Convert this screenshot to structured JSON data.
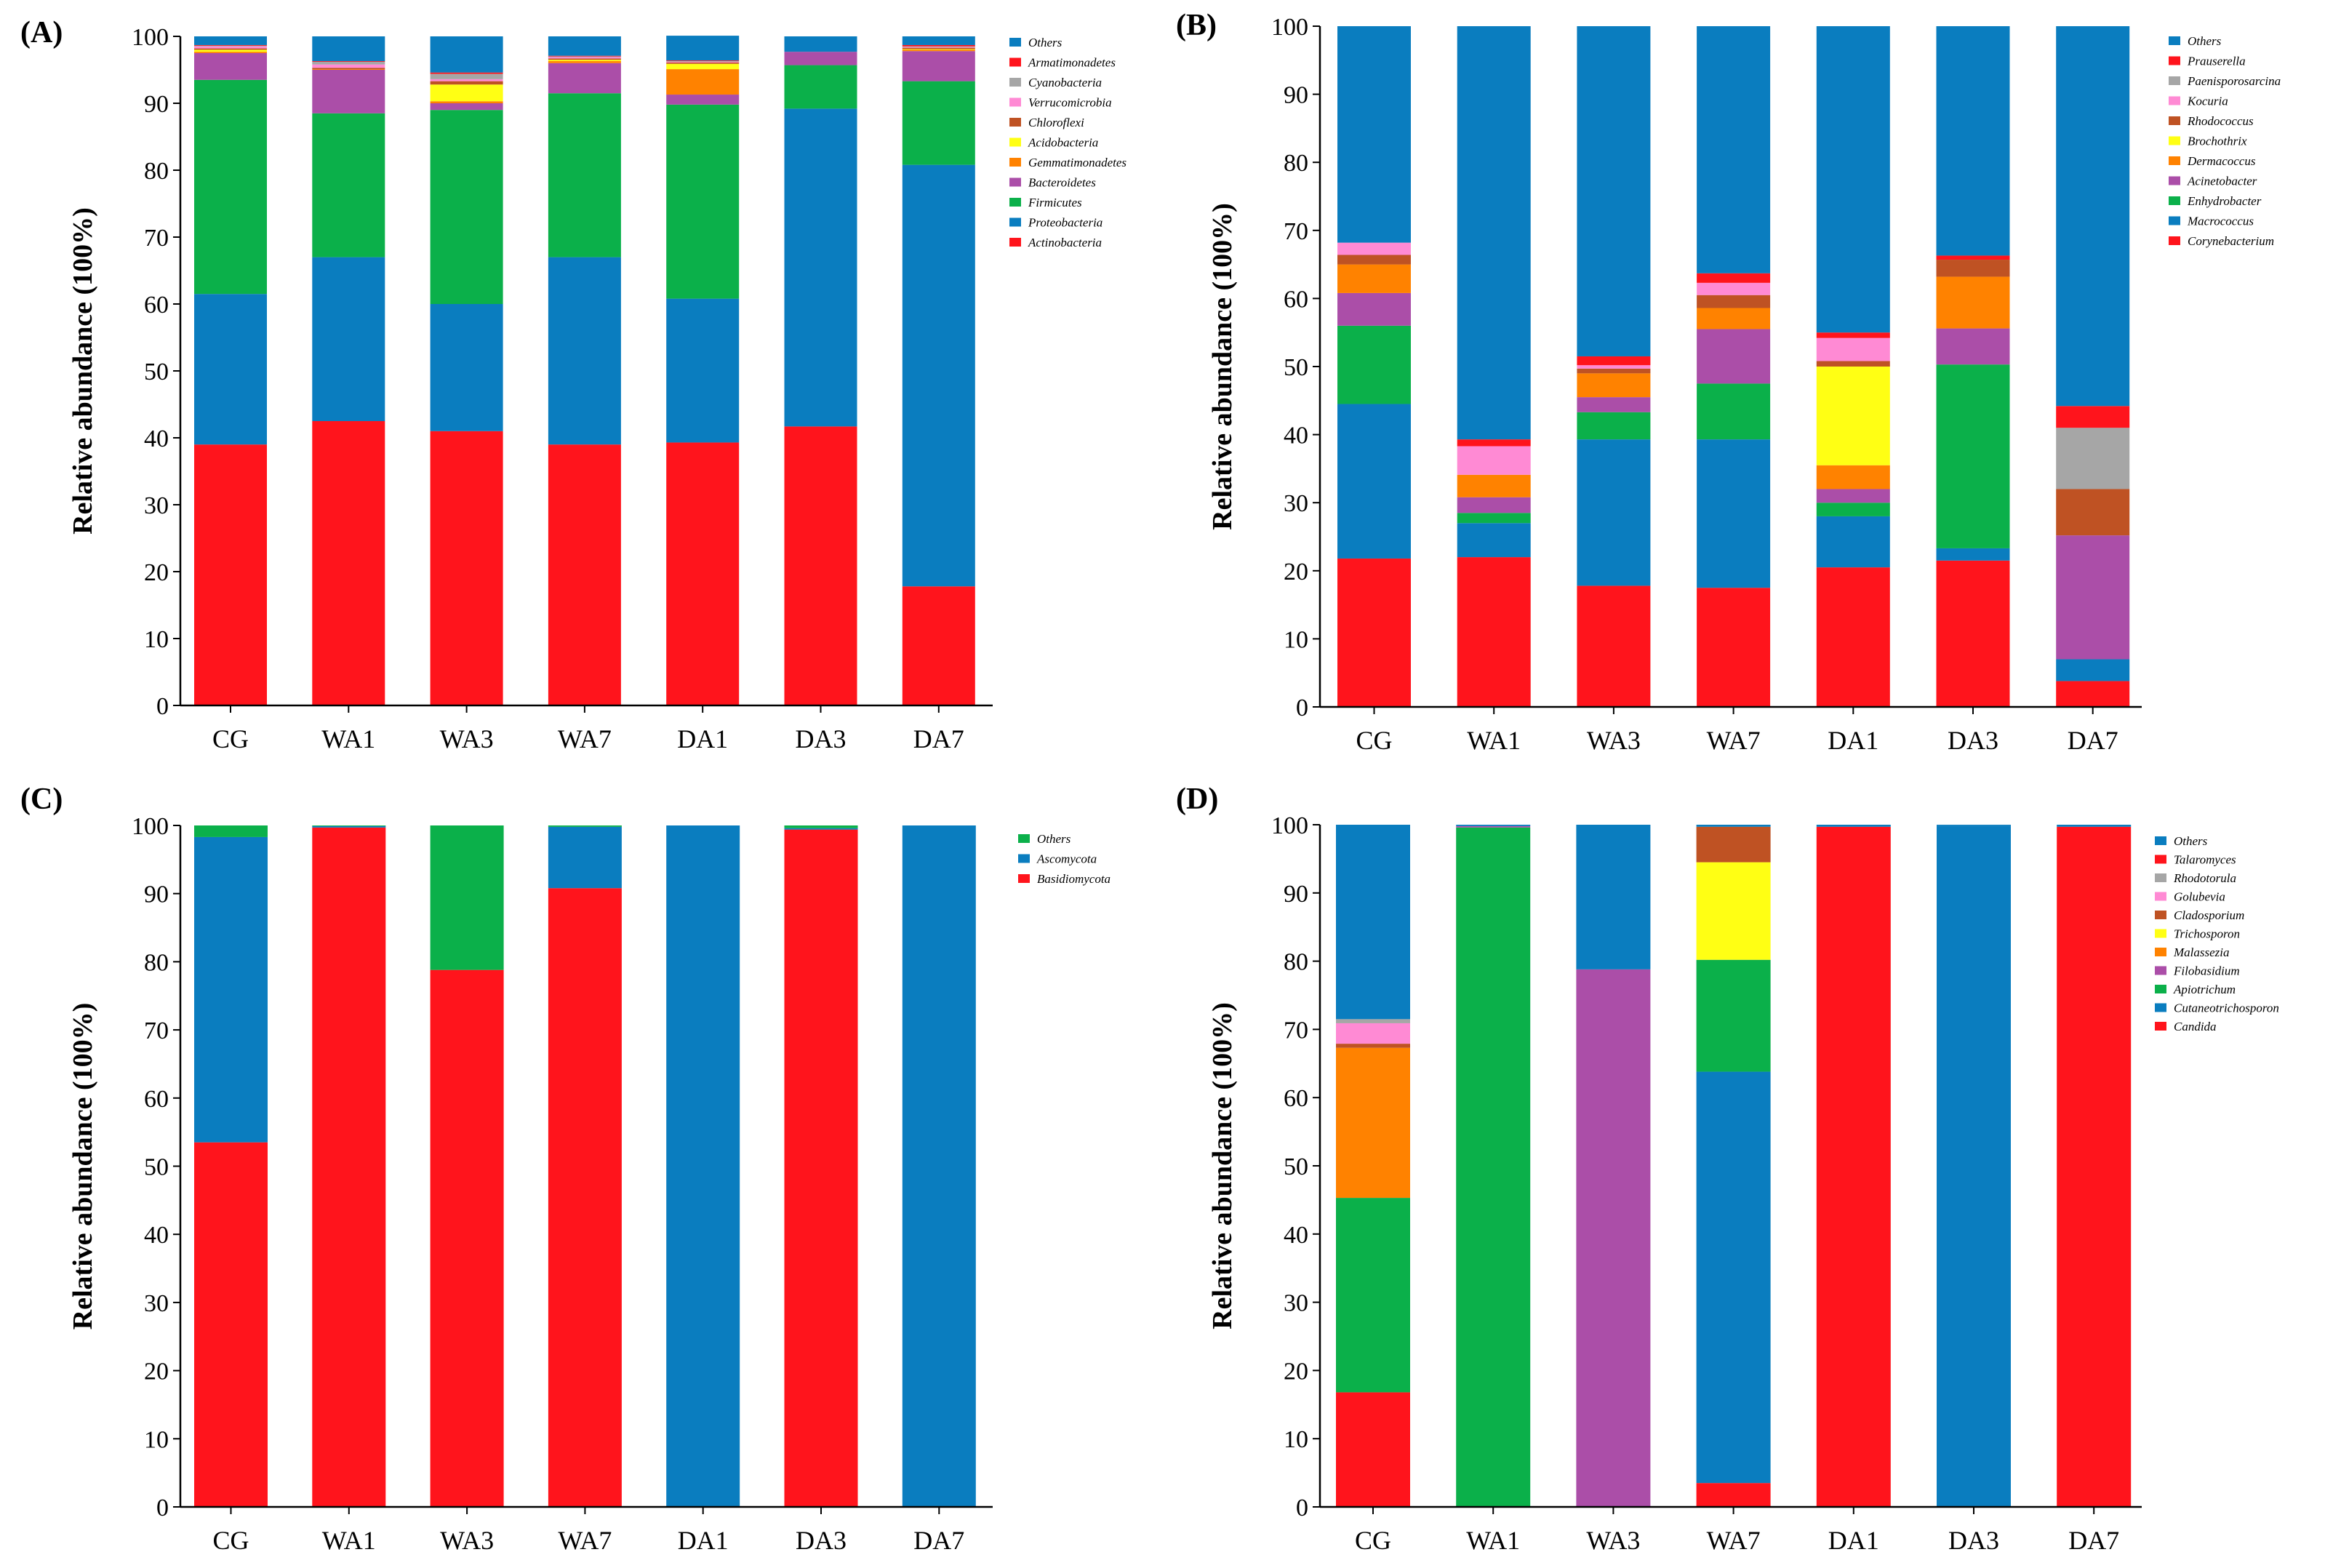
{
  "colors": {
    "red": "#ff141c",
    "blue": "#0a7dbf",
    "green": "#0bb04a",
    "purple": "#ab4ea8",
    "orange": "#ff8200",
    "yellow": "#ffff14",
    "brown": "#bf5223",
    "pink": "#ff8ad4",
    "gray": "#a6a6a6",
    "otherblue": "#0a7dbf"
  },
  "chart_data": [
    {
      "panel": "(A)",
      "type": "bar",
      "stacked": true,
      "ylabel": "Relative abundance (100%)",
      "ylim": [
        0,
        100
      ],
      "yticks": [
        0,
        10,
        20,
        30,
        40,
        50,
        60,
        70,
        80,
        90,
        100
      ],
      "categories": [
        "CG",
        "WA1",
        "WA3",
        "WA7",
        "DA1",
        "DA3",
        "DA7"
      ],
      "legend_position": "top-right",
      "series": [
        {
          "name": "Actinobacteria",
          "color": "red",
          "values": [
            39.0,
            42.5,
            41.0,
            39.0,
            39.3,
            41.7,
            17.8
          ]
        },
        {
          "name": "Proteobacteria",
          "color": "blue",
          "values": [
            22.5,
            24.5,
            19.0,
            28.0,
            21.5,
            47.5,
            63.0
          ]
        },
        {
          "name": "Firmicutes",
          "color": "green",
          "values": [
            32.0,
            21.5,
            29.0,
            24.5,
            29.0,
            6.5,
            12.5
          ]
        },
        {
          "name": "Bacteroidetes",
          "color": "purple",
          "values": [
            4.0,
            6.5,
            1.0,
            4.5,
            1.5,
            2.0,
            4.5
          ]
        },
        {
          "name": "Gemmatimonadetes",
          "color": "orange",
          "values": [
            0.2,
            0.1,
            0.3,
            0.3,
            3.8,
            0.0,
            0.2
          ]
        },
        {
          "name": "Acidobacteria",
          "color": "yellow",
          "values": [
            0.3,
            0.0,
            2.5,
            0.2,
            0.8,
            0.0,
            0.1
          ]
        },
        {
          "name": "Chloroflexi",
          "color": "brown",
          "values": [
            0.2,
            0.2,
            0.5,
            0.2,
            0.2,
            0.0,
            0.2
          ]
        },
        {
          "name": "Verrucomicrobia",
          "color": "pink",
          "values": [
            0.3,
            0.5,
            0.3,
            0.2,
            0.1,
            0.0,
            0.1
          ]
        },
        {
          "name": "Cyanobacteria",
          "color": "gray",
          "values": [
            0.1,
            0.4,
            0.8,
            0.1,
            0.1,
            0.0,
            0.1
          ]
        },
        {
          "name": "Armatimonadetes",
          "color": "red",
          "values": [
            0.1,
            0.1,
            0.2,
            0.1,
            0.1,
            0.0,
            0.2
          ]
        },
        {
          "name": "Others",
          "color": "otherblue",
          "values": [
            1.3,
            3.7,
            5.4,
            2.9,
            3.7,
            2.3,
            1.3
          ]
        }
      ]
    },
    {
      "panel": "(B)",
      "type": "bar",
      "stacked": true,
      "ylabel": "Relative abundance (100%)",
      "ylim": [
        0,
        100
      ],
      "yticks": [
        0,
        10,
        20,
        30,
        40,
        50,
        60,
        70,
        80,
        90,
        100
      ],
      "categories": [
        "CG",
        "WA1",
        "WA3",
        "WA7",
        "DA1",
        "DA3",
        "DA7"
      ],
      "legend_position": "top-right",
      "series": [
        {
          "name": "Corynebacterium",
          "color": "red",
          "values": [
            21.8,
            22.0,
            17.8,
            17.5,
            20.5,
            21.5,
            3.8
          ]
        },
        {
          "name": "Macrococcus",
          "color": "blue",
          "values": [
            22.7,
            5.0,
            21.5,
            21.8,
            7.5,
            1.8,
            3.2
          ]
        },
        {
          "name": "Enhydrobacter",
          "color": "green",
          "values": [
            11.5,
            1.5,
            4.0,
            8.2,
            2.0,
            27.0,
            0.0
          ]
        },
        {
          "name": "Acinetobacter",
          "color": "purple",
          "values": [
            4.8,
            2.3,
            2.2,
            8.0,
            2.0,
            5.3,
            18.2
          ]
        },
        {
          "name": "Dermacoccus",
          "color": "orange",
          "values": [
            4.2,
            3.3,
            3.5,
            3.1,
            3.5,
            7.6,
            0.0
          ]
        },
        {
          "name": "Brochothrix",
          "color": "yellow",
          "values": [
            0.0,
            0.0,
            0.0,
            0.0,
            14.5,
            0.0,
            0.0
          ]
        },
        {
          "name": "Rhodococcus",
          "color": "brown",
          "values": [
            1.4,
            0.0,
            0.7,
            1.9,
            0.8,
            2.5,
            6.8
          ]
        },
        {
          "name": "Kocuria",
          "color": "pink",
          "values": [
            1.8,
            4.2,
            0.5,
            1.8,
            3.4,
            0.0,
            0.0
          ]
        },
        {
          "name": "Paenisporosarcina",
          "color": "gray",
          "values": [
            0.0,
            0.0,
            0.0,
            0.0,
            0.0,
            0.0,
            9.0
          ]
        },
        {
          "name": "Prauserella",
          "color": "red",
          "values": [
            0.0,
            1.0,
            1.3,
            1.4,
            0.8,
            0.6,
            3.2
          ]
        },
        {
          "name": "Others",
          "color": "otherblue",
          "values": [
            31.8,
            60.7,
            48.5,
            36.3,
            45.0,
            33.7,
            55.8
          ]
        }
      ]
    },
    {
      "panel": "(C)",
      "type": "bar",
      "stacked": true,
      "ylabel": "Relative abundance (100%)",
      "ylim": [
        0,
        100
      ],
      "yticks": [
        0,
        10,
        20,
        30,
        40,
        50,
        60,
        70,
        80,
        90,
        100
      ],
      "categories": [
        "CG",
        "WA1",
        "WA3",
        "WA7",
        "DA1",
        "DA3",
        "DA7"
      ],
      "legend_position": "top-right",
      "series": [
        {
          "name": "Basidiomycota",
          "color": "red",
          "values": [
            53.5,
            99.7,
            78.8,
            90.8,
            0.0,
            99.4,
            0.0
          ]
        },
        {
          "name": "Ascomycota",
          "color": "blue",
          "values": [
            44.8,
            0.2,
            0.0,
            9.0,
            100.0,
            0.2,
            100.0
          ]
        },
        {
          "name": "Others",
          "color": "green",
          "values": [
            1.7,
            0.1,
            21.2,
            0.2,
            0.0,
            0.4,
            0.0
          ]
        }
      ]
    },
    {
      "panel": "(D)",
      "type": "bar",
      "stacked": true,
      "ylabel": "Relative abundance (100%)",
      "ylim": [
        0,
        100
      ],
      "yticks": [
        0,
        10,
        20,
        30,
        40,
        50,
        60,
        70,
        80,
        90,
        100
      ],
      "categories": [
        "CG",
        "WA1",
        "WA3",
        "WA7",
        "DA1",
        "DA3",
        "DA7"
      ],
      "legend_position": "top-right",
      "series": [
        {
          "name": "Candida",
          "color": "red",
          "values": [
            16.8,
            0.0,
            0.0,
            3.5,
            99.7,
            0.0,
            99.7
          ]
        },
        {
          "name": "Cutaneotrichosporon",
          "color": "blue",
          "values": [
            0.0,
            0.0,
            0.0,
            60.3,
            0.0,
            99.8,
            0.0
          ]
        },
        {
          "name": "Apiotrichum",
          "color": "green",
          "values": [
            28.5,
            99.6,
            0.0,
            16.4,
            0.0,
            0.0,
            0.0
          ]
        },
        {
          "name": "Filobasidium",
          "color": "purple",
          "values": [
            0.0,
            0.2,
            78.8,
            0.0,
            0.0,
            0.0,
            0.0
          ]
        },
        {
          "name": "Malassezia",
          "color": "orange",
          "values": [
            22.0,
            0.0,
            0.0,
            0.0,
            0.0,
            0.0,
            0.0
          ]
        },
        {
          "name": "Trichosporon",
          "color": "yellow",
          "values": [
            0.0,
            0.0,
            0.0,
            14.3,
            0.0,
            0.0,
            0.0
          ]
        },
        {
          "name": "Cladosporium",
          "color": "brown",
          "values": [
            0.6,
            0.0,
            0.0,
            5.2,
            0.0,
            0.0,
            0.0
          ]
        },
        {
          "name": "Golubevia",
          "color": "pink",
          "values": [
            3.0,
            0.0,
            0.0,
            0.0,
            0.0,
            0.0,
            0.0
          ]
        },
        {
          "name": "Rhodotorula",
          "color": "gray",
          "values": [
            0.6,
            0.0,
            0.0,
            0.0,
            0.0,
            0.0,
            0.0
          ]
        },
        {
          "name": "Talaromyces",
          "color": "red",
          "values": [
            0.0,
            0.0,
            0.0,
            0.0,
            0.0,
            0.0,
            0.0
          ]
        },
        {
          "name": "Others",
          "color": "otherblue",
          "values": [
            28.5,
            0.2,
            21.2,
            0.3,
            0.3,
            0.2,
            0.3
          ]
        }
      ]
    }
  ]
}
